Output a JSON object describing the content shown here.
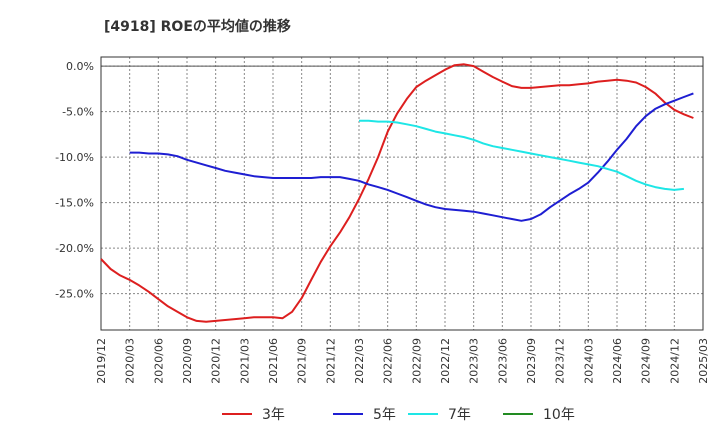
{
  "chart_data": {
    "type": "line",
    "title": "[4918]  ROEの平均値の推移",
    "xlabel": "",
    "ylabel": "",
    "ylim": [
      -29,
      1
    ],
    "yticks": [
      0,
      -5,
      -10,
      -15,
      -20,
      -25
    ],
    "ytick_labels": [
      "0.0%",
      "-5.0%",
      "-10.0%",
      "-15.0%",
      "-20.0%",
      "-25.0%"
    ],
    "xtick_labels": [
      "2019/12",
      "2020/03",
      "2020/06",
      "2020/09",
      "2020/12",
      "2021/03",
      "2021/06",
      "2021/09",
      "2021/12",
      "2022/03",
      "2022/06",
      "2022/09",
      "2022/12",
      "2023/03",
      "2023/06",
      "2023/09",
      "2023/12",
      "2024/03",
      "2024/06",
      "2024/09",
      "2024/12",
      "2025/03"
    ],
    "grid": true,
    "legend_position": "bottom",
    "series": [
      {
        "name": "3年",
        "color": "#dd1f1f",
        "start_index": 0,
        "values": [
          -21.2,
          -22.3,
          -23.0,
          -23.5,
          -24.1,
          -24.8,
          -25.6,
          -26.4,
          -27.0,
          -27.6,
          -28.0,
          -28.1,
          -28.0,
          -27.9,
          -27.8,
          -27.7,
          -27.6,
          -27.6,
          -27.6,
          -27.7,
          -27.0,
          -25.5,
          -23.5,
          -21.5,
          -19.8,
          -18.3,
          -16.6,
          -14.6,
          -12.4,
          -10.0,
          -7.2,
          -5.2,
          -3.6,
          -2.3,
          -1.6,
          -1.0,
          -0.4,
          0.1,
          0.2,
          0.0,
          -0.6,
          -1.2,
          -1.7,
          -2.2,
          -2.4,
          -2.4,
          -2.3,
          -2.2,
          -2.1,
          -2.1,
          -2.0,
          -1.9,
          -1.7,
          -1.6,
          -1.5,
          -1.6,
          -1.8,
          -2.3,
          -3.0,
          -4.0,
          -4.8,
          -5.3,
          -5.7
        ]
      },
      {
        "name": "5年",
        "color": "#1e1ed2",
        "start_index": 3,
        "values": [
          -9.5,
          -9.5,
          -9.6,
          -9.6,
          -9.7,
          -9.9,
          -10.3,
          -10.6,
          -10.9,
          -11.2,
          -11.5,
          -11.7,
          -11.9,
          -12.1,
          -12.2,
          -12.3,
          -12.3,
          -12.3,
          -12.3,
          -12.3,
          -12.2,
          -12.2,
          -12.2,
          -12.4,
          -12.6,
          -13.0,
          -13.3,
          -13.6,
          -14.0,
          -14.4,
          -14.8,
          -15.2,
          -15.5,
          -15.7,
          -15.8,
          -15.9,
          -16.0,
          -16.2,
          -16.4,
          -16.6,
          -16.8,
          -17.0,
          -16.8,
          -16.3,
          -15.5,
          -14.8,
          -14.1,
          -13.5,
          -12.8,
          -11.7,
          -10.5,
          -9.2,
          -8.0,
          -6.6,
          -5.5,
          -4.7,
          -4.2,
          -3.8,
          -3.4,
          -3.0
        ]
      },
      {
        "name": "7年",
        "color": "#1ee6e6",
        "start_index": 27,
        "values": [
          -6.0,
          -6.0,
          -6.1,
          -6.1,
          -6.2,
          -6.4,
          -6.6,
          -6.9,
          -7.2,
          -7.4,
          -7.6,
          -7.8,
          -8.1,
          -8.5,
          -8.8,
          -9.0,
          -9.2,
          -9.4,
          -9.6,
          -9.8,
          -10.0,
          -10.2,
          -10.4,
          -10.6,
          -10.8,
          -11.0,
          -11.3,
          -11.6,
          -12.1,
          -12.6,
          -13.0,
          -13.3,
          -13.5,
          -13.6,
          -13.5
        ]
      },
      {
        "name": "10年",
        "color": "#228b22",
        "start_index": 0,
        "values": []
      }
    ]
  }
}
